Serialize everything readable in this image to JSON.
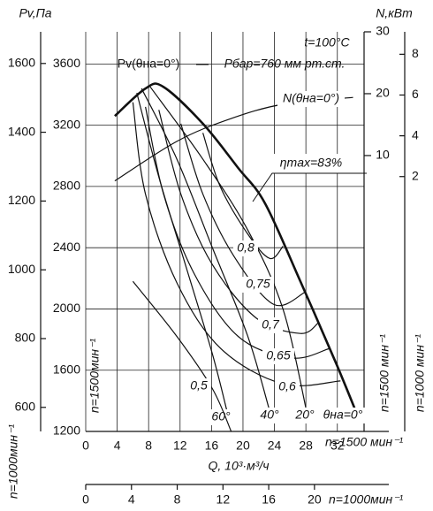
{
  "chart_data": {
    "type": "line",
    "x_label": "Q, 10³·м³/ч",
    "y_label": "Pv,Па",
    "y2_label": "N,кВт",
    "xlim": [
      0,
      35.4
    ],
    "xticks": [
      0,
      4,
      8,
      12,
      16,
      20,
      24,
      28,
      32
    ],
    "ylim": [
      1200,
      3810
    ],
    "yticks": [
      1200,
      1600,
      2000,
      2400,
      2800,
      3200,
      3600
    ],
    "y2lim": [
      -34.6,
      30
    ],
    "y2ticks": [
      10,
      20,
      30
    ],
    "grid": true,
    "speed_1500": {
      "x_label": "n=1500 мин⁻¹",
      "y_label": "n=1500мин⁻¹",
      "y2_label": "n=1500 мин⁻¹"
    },
    "speed_1000": {
      "x_label": "n=1000мин⁻¹",
      "xlim": [
        0,
        26.5
      ],
      "xticks": [
        0,
        4,
        8,
        12,
        16,
        20
      ],
      "y_label": "n=1000мин⁻¹",
      "ylim": [
        530,
        1692
      ],
      "yticks": [
        600,
        800,
        1000,
        1200,
        1400,
        1600
      ],
      "y2_label": "n=1000 мин⁻¹",
      "y2lim": [
        -10.5,
        9.1
      ],
      "y2ticks": [
        2,
        4,
        6,
        8
      ]
    },
    "annotations": [
      "t=100°C",
      "Pv(θна=0°)",
      "Pбар=760 мм рт.ст.",
      "ηmax=83%"
    ],
    "series": [
      {
        "name": "θна=0°",
        "color": "#000000",
        "line_width": 2.6,
        "x": [
          3.7,
          7.6,
          9.9,
          14.9,
          19.4,
          22.8,
          27.3,
          31.8,
          34.6
        ],
        "values": [
          3260,
          3440,
          3450,
          3210,
          2920,
          2690,
          2180,
          1650,
          1300
        ]
      },
      {
        "name": "20°",
        "color": "#000000",
        "line_width": 1.2,
        "x": [
          8.2,
          14.9,
          20.6,
          25.1,
          28.2
        ],
        "values": [
          3451,
          2978,
          2516,
          1997,
          1304
        ]
      },
      {
        "name": "40°",
        "color": "#000000",
        "line_width": 1.2,
        "x": [
          7.1,
          11.6,
          16.1,
          20.6,
          23.4
        ],
        "values": [
          3440,
          2978,
          2401,
          1823,
          1333
        ]
      },
      {
        "name": "60°",
        "color": "#000000",
        "line_width": 1.2,
        "x": [
          6.5,
          9.3,
          12.7,
          16.1,
          18.1
        ],
        "values": [
          3411,
          2862,
          2285,
          1708,
          1304
        ]
      },
      {
        "name": "0,8",
        "color": "#000000",
        "line_width": 1.2,
        "x": [
          14.9,
          17.1,
          20.6,
          23.4,
          25.1
        ],
        "values": [
          3150,
          2800,
          2490,
          2330,
          2410
        ]
      },
      {
        "name": "0,75",
        "color": "#000000",
        "line_width": 1.2,
        "x": [
          12.1,
          14.9,
          18.9,
          23.9,
          27.9
        ],
        "values": [
          3210,
          2750,
          2340,
          2030,
          2110
        ]
      },
      {
        "name": "0,7",
        "color": "#000000",
        "line_width": 1.2,
        "x": [
          9.3,
          12.1,
          16.1,
          21.7,
          27.3,
          29.6
        ],
        "values": [
          3300,
          2750,
          2290,
          1940,
          1840,
          1910
        ]
      },
      {
        "name": "0,65",
        "color": "#000000",
        "line_width": 1.2,
        "x": [
          7.6,
          9.9,
          13.8,
          19.4,
          26.2,
          30.9
        ],
        "values": [
          3320,
          2750,
          2230,
          1820,
          1680,
          1740
        ]
      },
      {
        "name": "0,6",
        "color": "#000000",
        "line_width": 1.2,
        "x": [
          6.0,
          7.6,
          11.6,
          17.2,
          25.1,
          32.4
        ],
        "values": [
          3350,
          2750,
          2170,
          1740,
          1510,
          1530
        ]
      },
      {
        "name": "0,5",
        "color": "#000000",
        "line_width": 1.2,
        "x": [
          6.0,
          11.6,
          16.1,
          18.5
        ],
        "values": [
          2180,
          1820,
          1480,
          1200
        ]
      },
      {
        "name": "N(θна=0°)",
        "color": "#000000",
        "line_width": 1.2,
        "axis": "y2",
        "x": [
          3.7,
          11.6,
          18.3,
          25.1,
          34.0
        ],
        "values": [
          5.9,
          12.3,
          15.9,
          18.3,
          19.4
        ]
      }
    ]
  }
}
